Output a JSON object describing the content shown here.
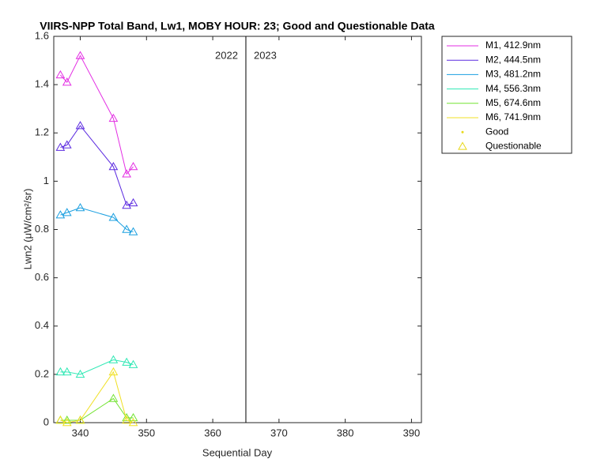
{
  "chart_data": {
    "type": "line",
    "title": "VIIRS-NPP Total Band, Lw1, MOBY HOUR: 23;  Good and Questionable Data",
    "x_label": "Sequential Day",
    "y_label": "Lwn2 (μW/cm²/sr)",
    "x": [
      337,
      338,
      340,
      345,
      347,
      348
    ],
    "series": [
      {
        "name": "M1, 412.9nm",
        "color": "#e32de3",
        "values": [
          1.44,
          1.41,
          1.52,
          1.26,
          1.03,
          1.06
        ]
      },
      {
        "name": "M2, 444.5nm",
        "color": "#5b2ae0",
        "values": [
          1.14,
          1.15,
          1.23,
          1.06,
          0.9,
          0.91
        ]
      },
      {
        "name": "M3, 481.2nm",
        "color": "#1a9fe0",
        "values": [
          0.86,
          0.87,
          0.89,
          0.85,
          0.8,
          0.79
        ]
      },
      {
        "name": "M4, 556.3nm",
        "color": "#2ee8b4",
        "values": [
          0.21,
          0.21,
          0.2,
          0.26,
          0.25,
          0.24
        ]
      },
      {
        "name": "M5, 674.6nm",
        "color": "#72e330",
        "values": [
          0.01,
          0.01,
          0.01,
          0.1,
          0.02,
          0.02
        ]
      },
      {
        "name": "M6, 741.9nm",
        "color": "#f0e024",
        "values": [
          0.01,
          0,
          0.01,
          0.21,
          0.01,
          0
        ]
      }
    ],
    "legend_markers": [
      {
        "name": "Good",
        "marker": "point",
        "color": "#e8d81a"
      },
      {
        "name": "Questionable",
        "marker": "triangle",
        "color": "#e8d81a"
      }
    ],
    "divider_x": 365,
    "year_labels": [
      "2022",
      "2023"
    ],
    "xlim": [
      336,
      391.5
    ],
    "xticks": [
      340,
      350,
      360,
      370,
      380,
      390
    ],
    "ylim": [
      0,
      1.6
    ],
    "yticks": [
      0,
      0.2,
      0.4,
      0.6,
      0.8,
      1,
      1.2,
      1.4,
      1.6
    ],
    "legend_position": "outside-top-right",
    "grid": false
  }
}
